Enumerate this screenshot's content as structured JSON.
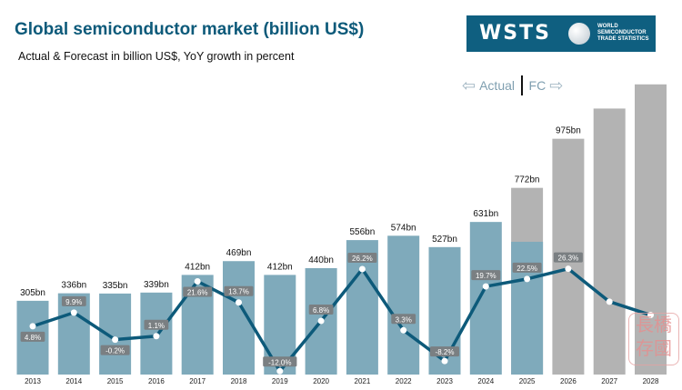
{
  "header": {
    "title": "Global semiconductor market (billion US$)",
    "subtitle": "Actual & Forecast in billion US$, YoY growth in percent"
  },
  "logo": {
    "word": "WSTS",
    "text": "WORLD SEMICONDUCTOR TRADE STATISTICS"
  },
  "legend": {
    "actual": "Actual",
    "forecast": "FC",
    "left_arrow_icon": "arrow-left-outline",
    "right_arrow_icon": "arrow-right-outline"
  },
  "watermark": {
    "text": "長橋存國"
  },
  "chart_data": {
    "type": "bar+line",
    "categories": [
      "2013",
      "2014",
      "2015",
      "2016",
      "2017",
      "2018",
      "2019",
      "2020",
      "2021",
      "2022",
      "2023",
      "2024",
      "2025",
      "2026",
      "2027",
      "2028"
    ],
    "market_bn": [
      305,
      336,
      335,
      339,
      412,
      469,
      412,
      440,
      556,
      574,
      527,
      631,
      772,
      975,
      1100,
      1200
    ],
    "market_labels": [
      "305bn",
      "336bn",
      "335bn",
      "339bn",
      "412bn",
      "469bn",
      "412bn",
      "440bn",
      "556bn",
      "574bn",
      "527bn",
      "631bn",
      "772bn",
      "975bn",
      "",
      ""
    ],
    "growth_pct": [
      4.8,
      9.9,
      -0.2,
      1.1,
      21.6,
      13.7,
      -12.0,
      6.8,
      26.2,
      3.3,
      -8.2,
      19.7,
      22.5,
      26.3,
      14,
      9
    ],
    "growth_labels": [
      "4.8%",
      "9.9%",
      "-0.2%",
      "1.1%",
      "21.6%",
      "13.7%",
      "-12.0%",
      "6.8%",
      "26.2%",
      "3.3%",
      "-8.2%",
      "19.7%",
      "22.5%",
      "26.3%",
      "",
      ""
    ],
    "actual_last_index": 11,
    "partial_actual_2025_bn": 549,
    "colors": {
      "actual": "#7faabb",
      "forecast": "#b3b3b3",
      "line": "#0d5a7a",
      "label_bg": "#7a7f82"
    }
  }
}
